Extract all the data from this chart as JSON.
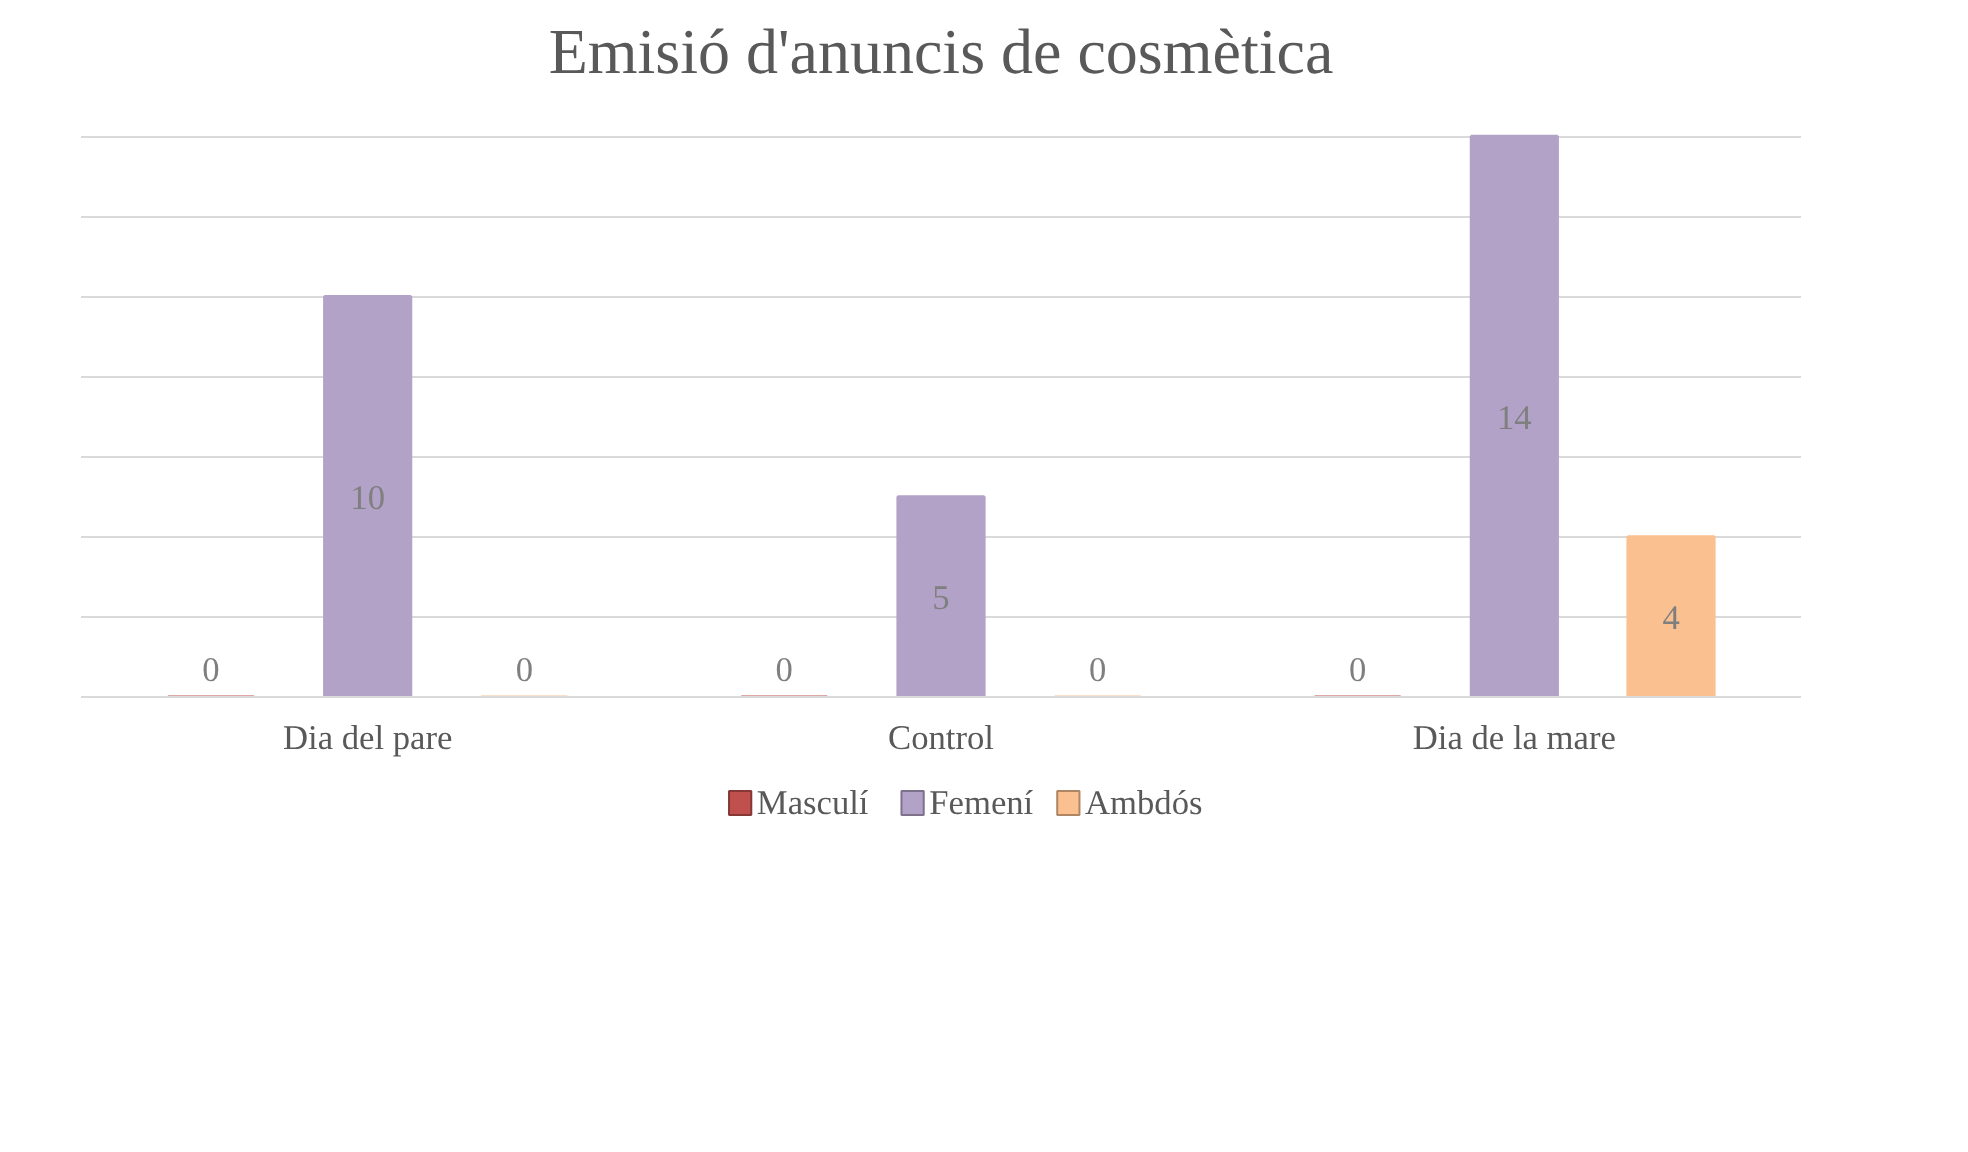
{
  "chart_data": {
    "type": "bar",
    "title": "Emisió d'anuncis de cosmètica",
    "categories": [
      "Dia del pare",
      "Control",
      "Dia de la mare"
    ],
    "series": [
      {
        "name": "Masculí",
        "color": "#c0504d",
        "values": [
          0,
          0,
          0
        ]
      },
      {
        "name": "Femení",
        "color": "#b3a2c7",
        "values": [
          10,
          5,
          14
        ]
      },
      {
        "name": "Ambdós",
        "color": "#fac090",
        "values": [
          0,
          0,
          4
        ]
      }
    ],
    "tick_labels": "x",
    "grid": "y",
    "legend": "bottom",
    "data_labels": true
  }
}
